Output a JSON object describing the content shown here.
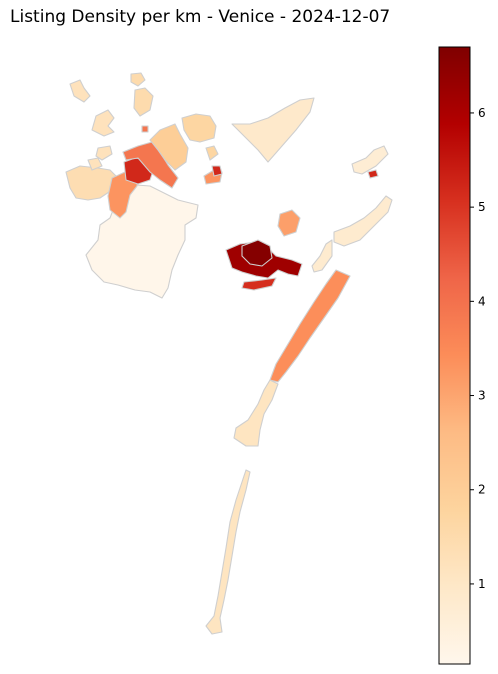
{
  "title": "Listing Density per km - Venice - 2024-12-07",
  "colorbar": {
    "colormap": "OrRd",
    "min": 0.15,
    "max": 6.7,
    "ticks": [
      "1",
      "2",
      "3",
      "4",
      "5",
      "6"
    ],
    "stops": [
      "#fff7ec",
      "#fee8c8",
      "#fdd49e",
      "#fdbb84",
      "#fc8d59",
      "#ef6548",
      "#d7301f",
      "#b30000",
      "#7f0000"
    ]
  },
  "districts": [
    {
      "id": "mestre-centro",
      "value": 5.2
    },
    {
      "id": "mestre-carpenedo",
      "value": 3.9
    },
    {
      "id": "mestre-east",
      "value": 2.0
    },
    {
      "id": "mestre-west",
      "value": 3.3
    },
    {
      "id": "chirignago",
      "value": 1.4
    },
    {
      "id": "zelarino",
      "value": 1.2
    },
    {
      "id": "favaro",
      "value": 1.7
    },
    {
      "id": "campalto",
      "value": 1.5
    },
    {
      "id": "tessera",
      "value": 0.9
    },
    {
      "id": "marghera",
      "value": 0.2
    },
    {
      "id": "venice-historic",
      "value": 6.2
    },
    {
      "id": "venice-inner",
      "value": 6.6
    },
    {
      "id": "giudecca",
      "value": 5.1
    },
    {
      "id": "murano",
      "value": 3.1
    },
    {
      "id": "sant-erasmo",
      "value": 0.8
    },
    {
      "id": "burano",
      "value": 0.7
    },
    {
      "id": "lido",
      "value": 3.4
    },
    {
      "id": "pellestrina",
      "value": 1.1
    }
  ]
}
